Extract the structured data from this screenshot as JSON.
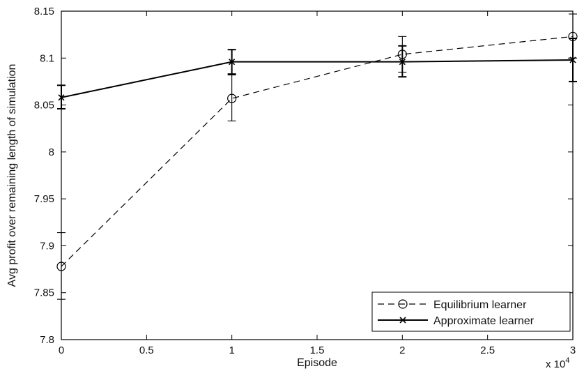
{
  "chart_data": {
    "type": "line",
    "title": "",
    "xlabel": "Episode",
    "ylabel": "Avg profit over remaining length of simulation",
    "x_multiplier": "x 10",
    "x_multiplier_exponent": "4",
    "xlim": [
      0,
      3
    ],
    "ylim": [
      7.8,
      8.15
    ],
    "x_ticks": [
      0,
      0.5,
      1,
      1.5,
      2,
      2.5,
      3
    ],
    "x_tick_labels": [
      "0",
      "0.5",
      "1",
      "1.5",
      "2",
      "2.5",
      "3"
    ],
    "y_ticks": [
      7.8,
      7.85,
      7.9,
      7.95,
      8.0,
      8.05,
      8.1,
      8.15
    ],
    "y_tick_labels": [
      "7.8",
      "7.85",
      "7.9",
      "7.95",
      "8",
      "8.05",
      "8.1",
      "8.15"
    ],
    "grid": false,
    "legend_position": "bottom-right",
    "x": [
      0,
      1,
      2,
      3
    ],
    "series": [
      {
        "name": "Equilibrium learner",
        "legend_label": "Equilibrium learner",
        "style": "dashed",
        "marker": "circle",
        "color": "#000000",
        "values": [
          7.878,
          8.057,
          8.104,
          8.123
        ],
        "err_low": [
          7.843,
          8.033,
          8.085,
          8.1
        ],
        "err_high": [
          7.914,
          8.082,
          8.123,
          8.147
        ]
      },
      {
        "name": "Approximate learner",
        "legend_label": "Approximate learner",
        "style": "solid",
        "marker": "x",
        "color": "#000000",
        "values": [
          8.058,
          8.096,
          8.096,
          8.098
        ],
        "err_low": [
          8.046,
          8.083,
          8.08,
          8.075
        ],
        "err_high": [
          8.071,
          8.109,
          8.113,
          8.121
        ]
      }
    ]
  }
}
